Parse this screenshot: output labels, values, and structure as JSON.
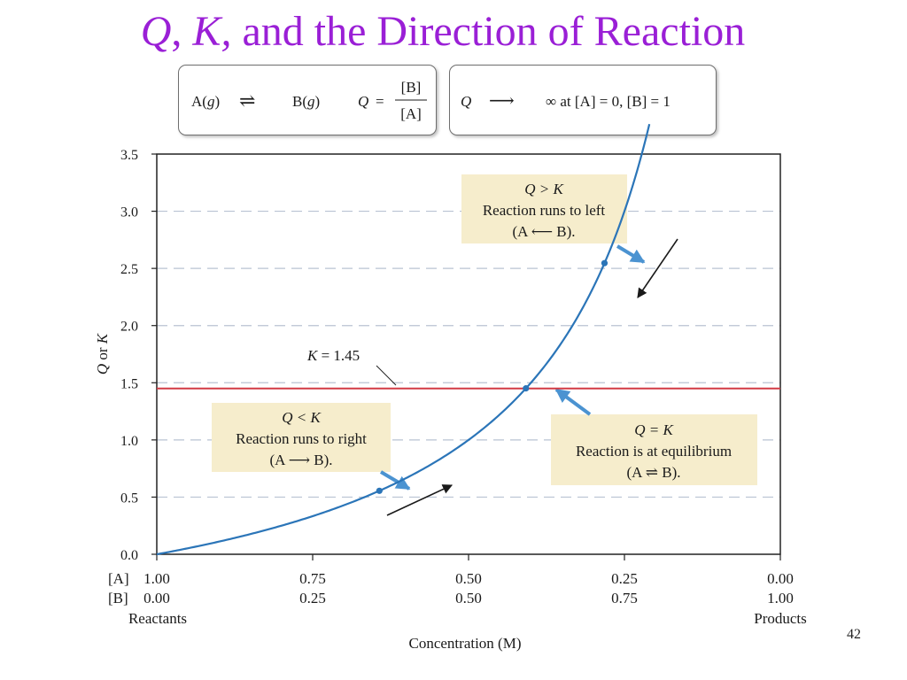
{
  "slide": {
    "title_q": "Q",
    "title_sep": ", ",
    "title_k": "K,",
    "title_rest": " and the Direction of Reaction",
    "page_number": "42"
  },
  "equation_box_1": {
    "reactant": "A(",
    "reactant_phase": "g",
    "reactant_close": ")",
    "arrow": "⇌",
    "product": "B(",
    "product_phase": "g",
    "product_close": ")",
    "q_label": "Q",
    "equals": "=",
    "numerator": "[B]",
    "denominator": "[A]"
  },
  "equation_box_2": {
    "q_label": "Q",
    "arrow": "⟶",
    "text": "∞ at [A] = 0, [B] = 1"
  },
  "chart_data": {
    "type": "line",
    "ylabel_q": "Q",
    "ylabel_or": " or ",
    "ylabel_k": "K",
    "xlabel": "Concentration (M)",
    "ylim": [
      0,
      3.5
    ],
    "yticks": [
      "0.0",
      "0.5",
      "1.0",
      "1.5",
      "2.0",
      "2.5",
      "3.0",
      "3.5"
    ],
    "ytick_values": [
      0,
      0.5,
      1.0,
      1.5,
      2.0,
      2.5,
      3.0,
      3.5
    ],
    "xlim_B": [
      0,
      1
    ],
    "x_ticks": [
      {
        "B": 0.0,
        "a_label": "1.00",
        "b_label": "0.00"
      },
      {
        "B": 0.25,
        "a_label": "0.75",
        "b_label": "0.25"
      },
      {
        "B": 0.5,
        "a_label": "0.50",
        "b_label": "0.50"
      },
      {
        "B": 0.75,
        "a_label": "0.25",
        "b_label": "0.75"
      },
      {
        "B": 1.0,
        "a_label": "0.00",
        "b_label": "1.00"
      }
    ],
    "a_row_label": "[A]",
    "b_row_label": "[B]",
    "left_end_label": "Reactants",
    "right_end_label": "Products",
    "grid": "horizontal dashed",
    "series": [
      {
        "kind": "Q curve",
        "formula": "Q = [B]/[A]",
        "color": "#2b75b8",
        "B_range": [
          0,
          0.79
        ]
      },
      {
        "kind": "K line",
        "value": 1.45,
        "color": "#d23b45"
      }
    ],
    "k_label_k": "K",
    "k_label_rest": " = 1.45",
    "annotations": [
      {
        "id": "q-less-k",
        "title": "Q < K",
        "text": "Reaction runs to right",
        "reaction": "(A ⟶ B).",
        "point_B": 0.357
      },
      {
        "id": "q-equals-k",
        "title": "Q = K",
        "text": "Reaction is at equilibrium",
        "reaction": "(A ⇌ B).",
        "point_B": 0.592
      },
      {
        "id": "q-greater-k",
        "title": "Q > K",
        "text": "Reaction runs to left",
        "reaction": "(A ⟵ B).",
        "point_B": 0.718
      }
    ],
    "colors": {
      "curve": "#2b75b8",
      "k_line": "#d23b45",
      "title": "#9a1fd6",
      "annotation_bg": "#f6edcc",
      "pointer": "#4b93d1"
    }
  }
}
